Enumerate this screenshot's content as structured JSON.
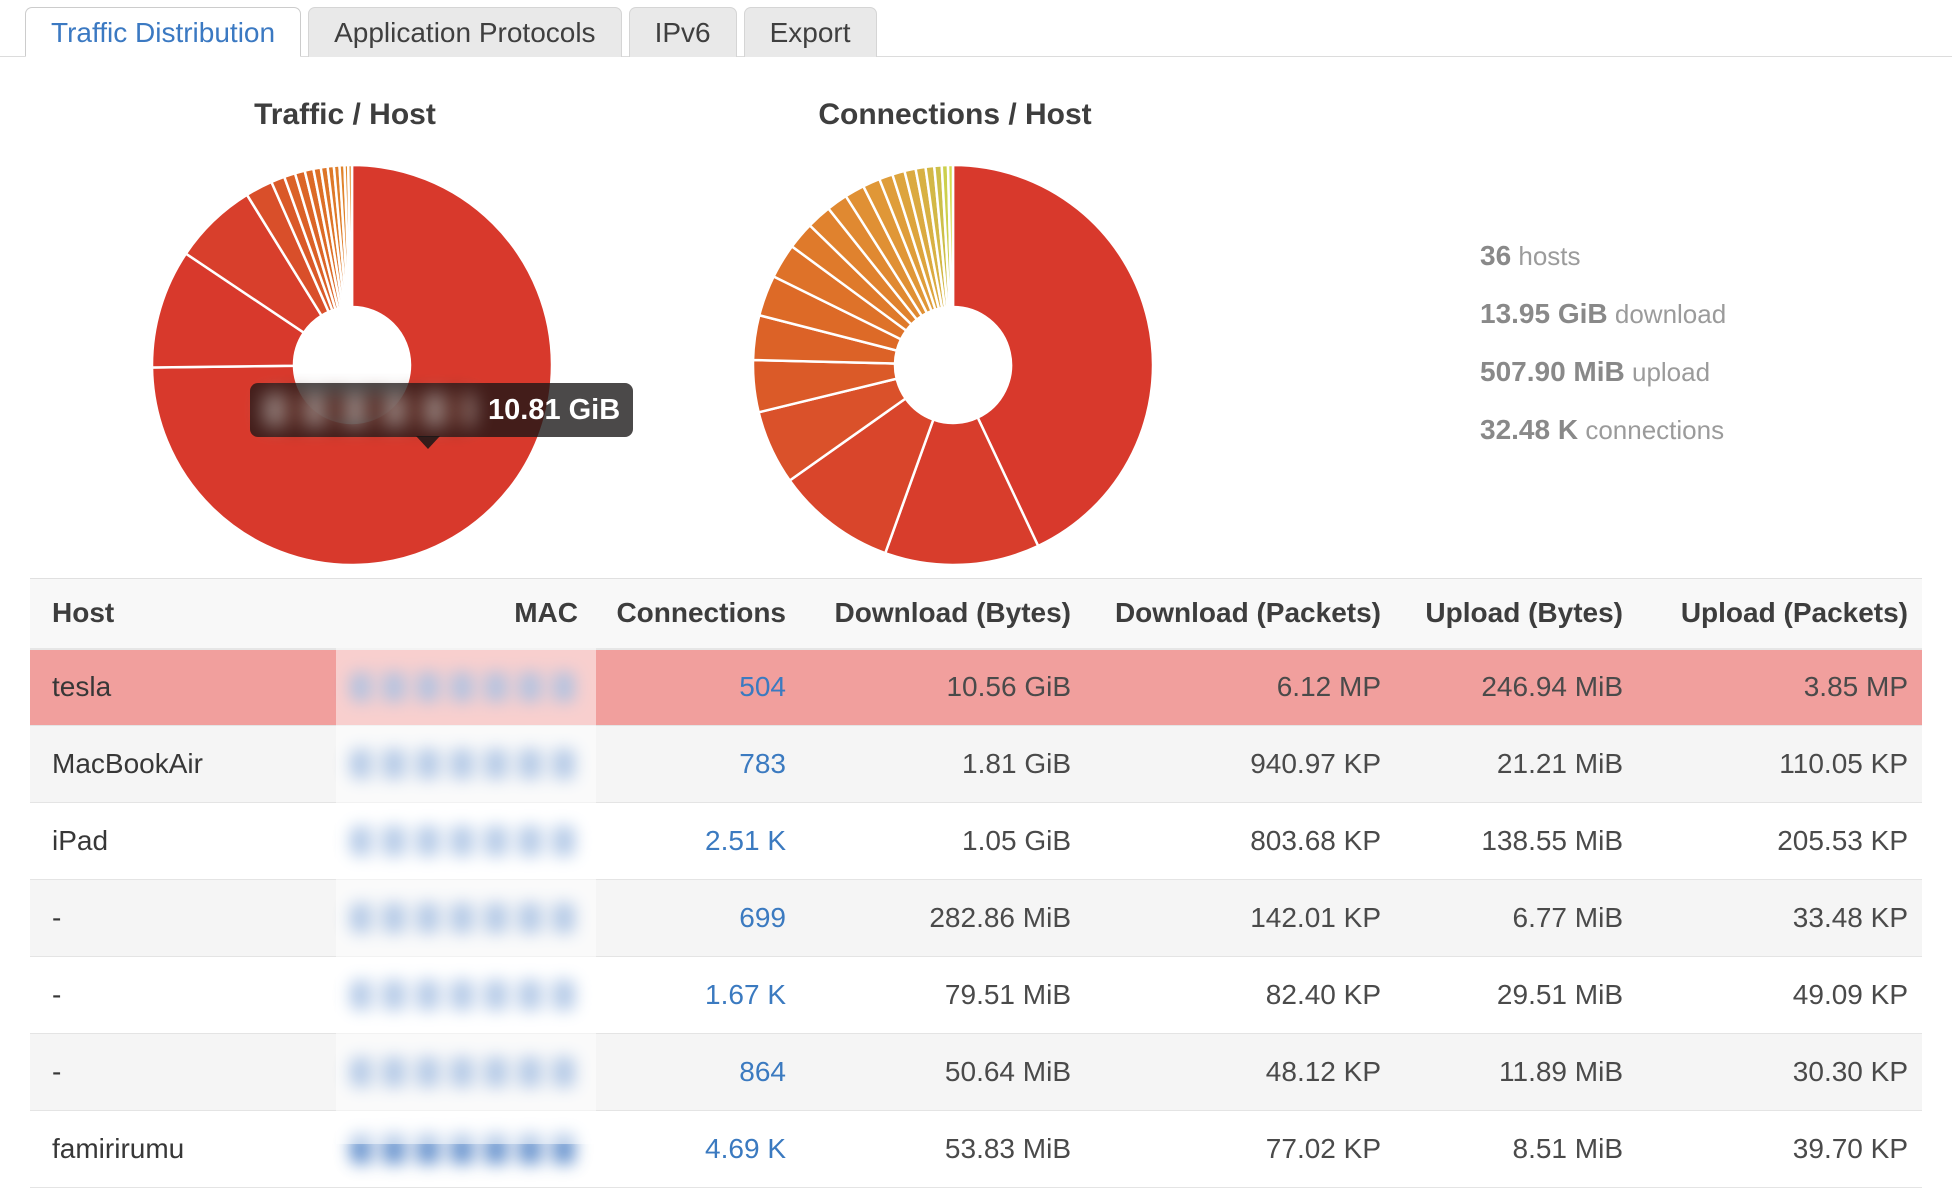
{
  "tabs": [
    {
      "label": "Traffic Distribution",
      "active": true
    },
    {
      "label": "Application Protocols",
      "active": false
    },
    {
      "label": "IPv6",
      "active": false
    },
    {
      "label": "Export",
      "active": false
    }
  ],
  "charts": {
    "traffic_title": "Traffic / Host",
    "connections_title": "Connections / Host"
  },
  "tooltip": {
    "value": "10.81 GiB",
    "label_redacted": true
  },
  "stats": [
    {
      "value": "36",
      "label": "hosts"
    },
    {
      "value": "13.95 GiB",
      "label": "download"
    },
    {
      "value": "507.90 MiB",
      "label": "upload"
    },
    {
      "value": "32.48 K",
      "label": "connections"
    }
  ],
  "table": {
    "columns": [
      "Host",
      "MAC",
      "Connections",
      "Download (Bytes)",
      "Download (Packets)",
      "Upload (Bytes)",
      "Upload (Packets)"
    ],
    "mac_redacted": true,
    "rows": [
      {
        "host": "tesla",
        "connections": "504",
        "dl_bytes": "10.56 GiB",
        "dl_packets": "6.12 MP",
        "ul_bytes": "246.94 MiB",
        "ul_packets": "3.85 MP",
        "highlighted": true
      },
      {
        "host": "MacBookAir",
        "connections": "783",
        "dl_bytes": "1.81 GiB",
        "dl_packets": "940.97 KP",
        "ul_bytes": "21.21 MiB",
        "ul_packets": "110.05 KP",
        "highlighted": false
      },
      {
        "host": "iPad",
        "connections": "2.51 K",
        "dl_bytes": "1.05 GiB",
        "dl_packets": "803.68 KP",
        "ul_bytes": "138.55 MiB",
        "ul_packets": "205.53 KP",
        "highlighted": false
      },
      {
        "host": "-",
        "connections": "699",
        "dl_bytes": "282.86 MiB",
        "dl_packets": "142.01 KP",
        "ul_bytes": "6.77 MiB",
        "ul_packets": "33.48 KP",
        "highlighted": false
      },
      {
        "host": "-",
        "connections": "1.67 K",
        "dl_bytes": "79.51 MiB",
        "dl_packets": "82.40 KP",
        "ul_bytes": "29.51 MiB",
        "ul_packets": "49.09 KP",
        "highlighted": false
      },
      {
        "host": "-",
        "connections": "864",
        "dl_bytes": "50.64 MiB",
        "dl_packets": "48.12 KP",
        "ul_bytes": "11.89 MiB",
        "ul_packets": "30.30 KP",
        "highlighted": false
      },
      {
        "host": "famirirumu",
        "connections": "4.69 K",
        "dl_bytes": "53.83 MiB",
        "dl_packets": "77.02 KP",
        "ul_bytes": "8.51 MiB",
        "ul_packets": "39.70 KP",
        "highlighted": false
      }
    ]
  },
  "chart_data": [
    {
      "type": "pie",
      "donut": true,
      "title": "Traffic / Host",
      "legend": "none",
      "values_estimated_from_angles": true,
      "hovered_segment": {
        "index": 0,
        "value": "10.81 GiB",
        "label_redacted": true
      },
      "segments": [
        {
          "pct": 74.8,
          "color": "#d8392c"
        },
        {
          "pct": 9.6,
          "color": "#d8392c"
        },
        {
          "pct": 6.8,
          "color": "#d83f2c"
        },
        {
          "pct": 2.2,
          "color": "#d94f2a"
        },
        {
          "pct": 1.1,
          "color": "#da5928"
        },
        {
          "pct": 0.9,
          "color": "#db6127"
        },
        {
          "pct": 0.8,
          "color": "#db6527"
        },
        {
          "pct": 0.7,
          "color": "#dc6a26"
        },
        {
          "pct": 0.6,
          "color": "#dd6f26"
        },
        {
          "pct": 0.55,
          "color": "#dd7427"
        },
        {
          "pct": 0.5,
          "color": "#de7928"
        },
        {
          "pct": 0.45,
          "color": "#df7e29"
        },
        {
          "pct": 0.4,
          "color": "#e0832b"
        },
        {
          "pct": 0.3,
          "color": "#e0882c"
        },
        {
          "pct": 0.3,
          "color": "#e18d2e"
        }
      ]
    },
    {
      "type": "pie",
      "donut": true,
      "title": "Connections / Host",
      "legend": "none",
      "values_estimated_from_angles": true,
      "segments": [
        {
          "pct": 43.0,
          "color": "#d8392c"
        },
        {
          "pct": 12.5,
          "color": "#d83d2c"
        },
        {
          "pct": 9.7,
          "color": "#d9452b"
        },
        {
          "pct": 6.0,
          "color": "#da512a"
        },
        {
          "pct": 4.2,
          "color": "#db5a28"
        },
        {
          "pct": 3.6,
          "color": "#dc6227"
        },
        {
          "pct": 3.3,
          "color": "#dd6a27"
        },
        {
          "pct": 2.8,
          "color": "#de7229"
        },
        {
          "pct": 2.2,
          "color": "#df7a2b"
        },
        {
          "pct": 2.0,
          "color": "#e0822e"
        },
        {
          "pct": 1.7,
          "color": "#e08931"
        },
        {
          "pct": 1.6,
          "color": "#e09034"
        },
        {
          "pct": 1.4,
          "color": "#e09737"
        },
        {
          "pct": 1.1,
          "color": "#df9d3a"
        },
        {
          "pct": 1.0,
          "color": "#dda43d"
        },
        {
          "pct": 0.9,
          "color": "#dbaa40"
        },
        {
          "pct": 0.8,
          "color": "#d8b143"
        },
        {
          "pct": 0.7,
          "color": "#d3b846"
        },
        {
          "pct": 0.6,
          "color": "#cdbf49"
        },
        {
          "pct": 0.5,
          "color": "#ccd04d"
        },
        {
          "pct": 0.4,
          "color": "#d5dc52"
        }
      ]
    }
  ],
  "colors": {
    "accent_link": "#3b7ac0",
    "active_tab_text": "#3b79c2",
    "highlight_row": "#f19f9d",
    "donut_main_red": "#d8392c"
  }
}
